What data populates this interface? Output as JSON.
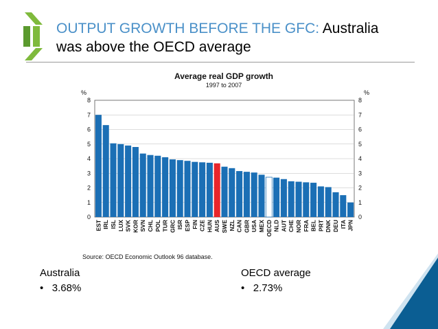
{
  "header": {
    "title_accent": "OUTPUT GROWTH BEFORE THE GFC:",
    "title_rest_1": "Australia",
    "title_line_2": "was above the OECD average"
  },
  "colors": {
    "accent": "#4a90c8",
    "bar": "#1b6fb5",
    "highlight": "#e8262b",
    "oecd": "#ffffff",
    "logo": "#7fba3c",
    "corner": "#0b5e93"
  },
  "chart_data": {
    "type": "bar",
    "title": "Average real GDP growth",
    "subtitle": "1997 to 2007",
    "ylabel_left": "%",
    "ylabel_right": "%",
    "ylim": [
      0,
      8
    ],
    "yticks": [
      0,
      1,
      2,
      3,
      4,
      5,
      6,
      7,
      8
    ],
    "categories": [
      "EST",
      "IRL",
      "ISL",
      "LUX",
      "SVK",
      "KOR",
      "SVN",
      "CHL",
      "POL",
      "TUR",
      "GRC",
      "ISR",
      "ESP",
      "FIN",
      "CZE",
      "HUN",
      "AUS",
      "SWE",
      "NZL",
      "CAN",
      "GBR",
      "USA",
      "MEX",
      "OECD",
      "NLD",
      "AUT",
      "CHE",
      "NOR",
      "FRA",
      "BEL",
      "PRT",
      "DNK",
      "DEU",
      "ITA",
      "JPN"
    ],
    "values": [
      7.0,
      6.3,
      5.05,
      5.0,
      4.9,
      4.8,
      4.35,
      4.25,
      4.2,
      4.1,
      3.95,
      3.9,
      3.85,
      3.78,
      3.75,
      3.72,
      3.68,
      3.45,
      3.35,
      3.15,
      3.1,
      3.05,
      2.9,
      2.73,
      2.7,
      2.6,
      2.45,
      2.42,
      2.38,
      2.35,
      2.1,
      2.05,
      1.7,
      1.5,
      1.0
    ],
    "highlight": {
      "AUS": "highlight",
      "OECD": "oecd"
    },
    "source": "Source: OECD Economic Outlook 96 database."
  },
  "stats": {
    "australia": {
      "label": "Australia",
      "value": "3.68%"
    },
    "oecd": {
      "label": "OECD average",
      "value": "2.73%"
    }
  }
}
